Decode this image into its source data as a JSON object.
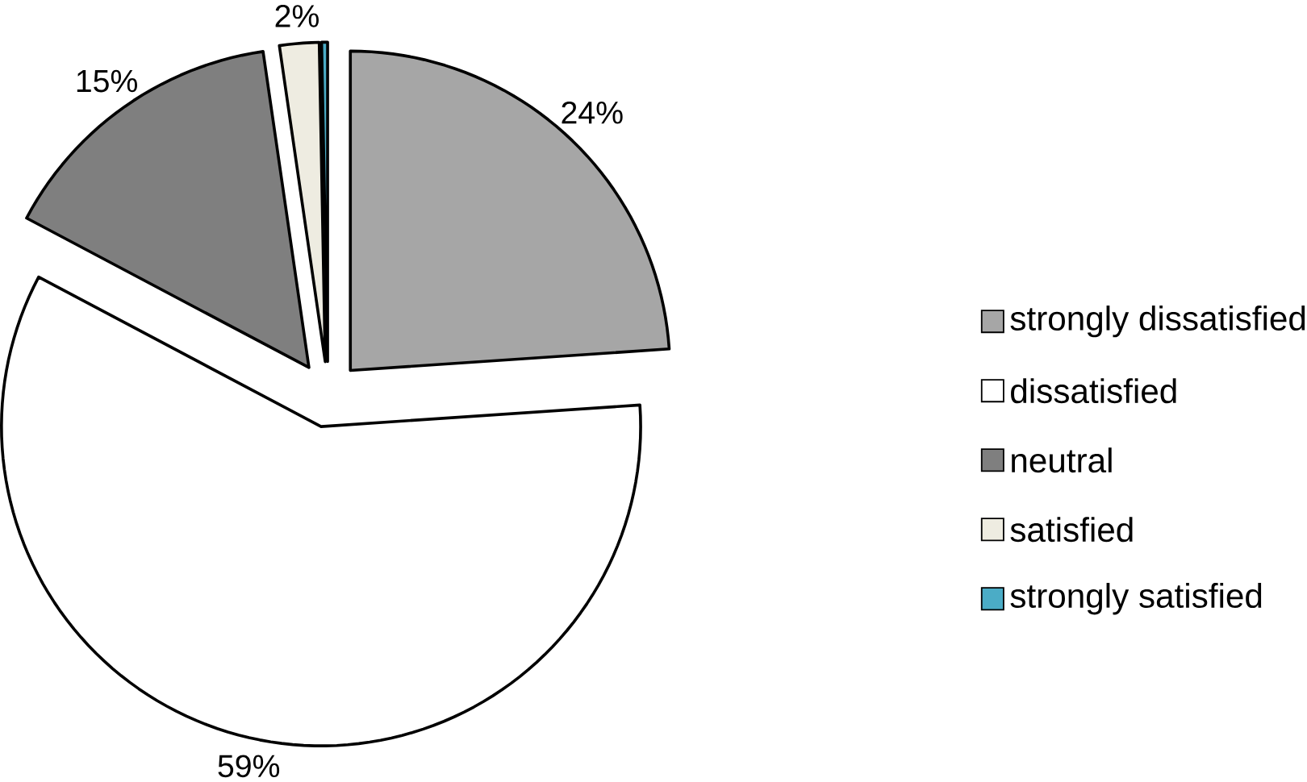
{
  "chart_data": {
    "type": "pie",
    "categories": [
      "strongly dissatisfied",
      "dissatisfied",
      "neutral",
      "satisfied",
      "strongly satisfied"
    ],
    "values": [
      24,
      59,
      15,
      2,
      0.3
    ],
    "value_labels": [
      "24%",
      "59%",
      "15%",
      "2%",
      null
    ],
    "colors": [
      "#a6a6a6",
      "#ffffff",
      "#7f7f7f",
      "#eeece1",
      "#4bacc6"
    ],
    "legend": "right"
  }
}
